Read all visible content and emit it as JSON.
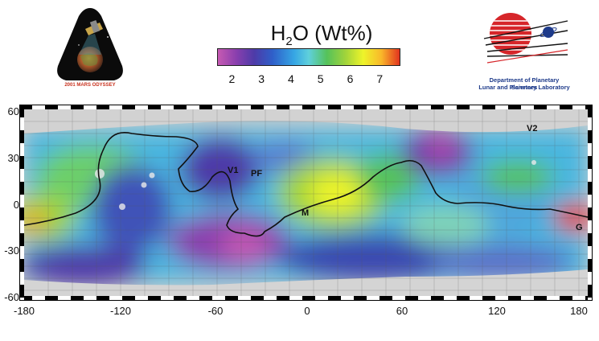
{
  "patch": {
    "caption": "2001 MARS ODYSSEY"
  },
  "legend": {
    "title_main": "H",
    "title_sub": "2",
    "title_rest": "O (Wt%)",
    "ticks": [
      "2",
      "3",
      "4",
      "5",
      "6",
      "7"
    ],
    "range": [
      1.5,
      7.7
    ]
  },
  "institution": {
    "line1": "Department of Planetary Sciences",
    "line2": "Lunar and Planetary Laboratory"
  },
  "map": {
    "lat_ticks": [
      "60",
      "30",
      "0",
      "-30",
      "-60"
    ],
    "lon_ticks": [
      "-180",
      "-120",
      "-60",
      "0",
      "60",
      "120",
      "180"
    ],
    "sites": {
      "v1": "V1",
      "pf": "PF",
      "m": "M",
      "v2": "V2",
      "g": "G"
    }
  }
}
